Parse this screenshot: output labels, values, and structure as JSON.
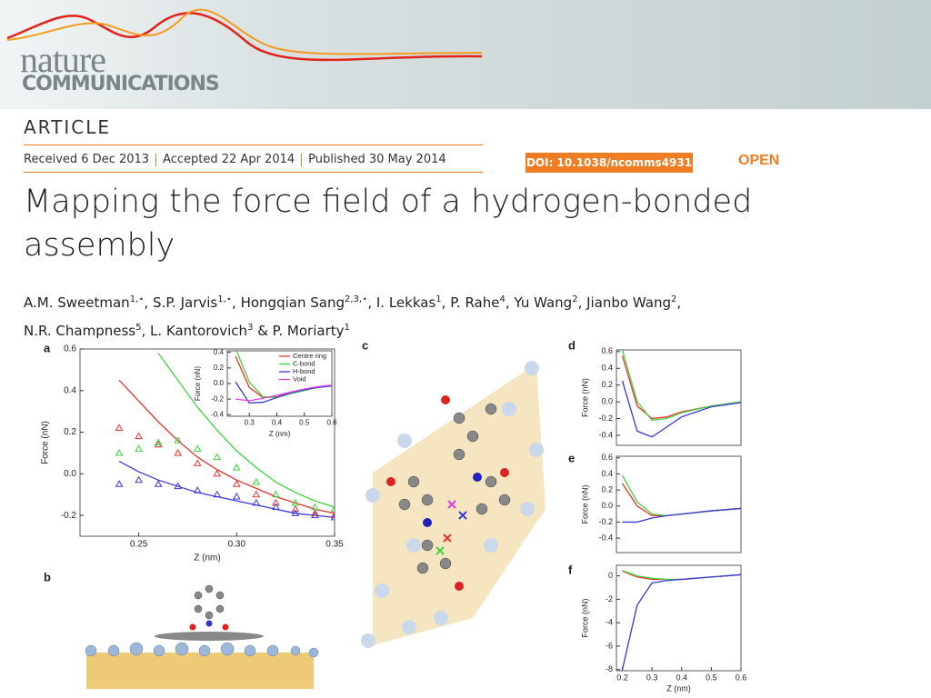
{
  "header": {
    "journal_name": "nature",
    "journal_subtitle": "COMMUNICATIONS"
  },
  "article_type": "ARTICLE",
  "dates": [
    "Received 6 Dec 2013",
    "Accepted 22 Apr 2014",
    "Published 30 May 2014"
  ],
  "doi": "DOI: 10.1038/ncomms4931",
  "access": "OPEN",
  "title_lines": [
    "Mapping the force field of a hydrogen-bonded",
    "assembly"
  ],
  "author_lines": [
    [
      {
        "name": "A.M. Sweetman",
        "affiliations": "1,⋆",
        "separator": ", "
      },
      {
        "name": "S.P. Jarvis",
        "affiliations": "1,⋆",
        "separator": ", "
      },
      {
        "name": "Hongqian Sang",
        "affiliations": "2,3,⋆",
        "separator": ", "
      },
      {
        "name": "I. Lekkas",
        "affiliations": "1",
        "separator": ", "
      },
      {
        "name": "P. Rahe",
        "affiliations": "4",
        "separator": ", "
      },
      {
        "name": "Yu Wang",
        "affiliations": "2",
        "separator": ", "
      },
      {
        "name": "Jianbo Wang",
        "affiliations": "2",
        "separator": ","
      }
    ],
    [
      {
        "name": "N.R. Champness",
        "affiliations": "5",
        "separator": ", "
      },
      {
        "name": "L. Kantorovich",
        "affiliations": "3",
        "separator": " & "
      },
      {
        "name": "P. Moriarty",
        "affiliations": "1"
      }
    ]
  ],
  "figure": {
    "panel_labels": [
      "a",
      "b",
      "c",
      "d",
      "e",
      "f"
    ],
    "panel_a": {
      "type": "line",
      "xlabel": "Z (nm)",
      "ylabel": "Force (nN)",
      "xlim": [
        0.22,
        0.35
      ],
      "ylim": [
        -0.3,
        0.6
      ],
      "xticks": [
        0.25,
        {
          "value": 0.3,
          "label": "0.30"
        },
        0.35
      ],
      "yticks": [
        0.6,
        0.4,
        0.2,
        {
          "value": 0,
          "label": "0.0"
        },
        -0.2
      ],
      "x": [
        0.24,
        0.25,
        0.26,
        0.27,
        0.28,
        0.29,
        0.3,
        0.31,
        0.32,
        0.33,
        0.34,
        0.35
      ],
      "series": [
        {
          "color": "#e8332f",
          "values": [
            0.45,
            0.35,
            0.25,
            0.16,
            0.08,
            0.02,
            -0.03,
            -0.07,
            -0.11,
            -0.14,
            -0.17,
            -0.19
          ]
        },
        {
          "color": "#3fd33f",
          "values": [
            null,
            null,
            0.58,
            0.45,
            0.32,
            0.21,
            0.11,
            0.03,
            -0.04,
            -0.09,
            -0.13,
            -0.16
          ]
        },
        {
          "color": "#3838d8",
          "values": [
            0.06,
            0.01,
            -0.03,
            -0.06,
            -0.09,
            -0.11,
            -0.13,
            -0.15,
            -0.17,
            -0.19,
            -0.2,
            -0.21
          ]
        },
        {
          "color": "#e8332f",
          "marker": "triangle",
          "values": [
            0.22,
            0.18,
            0.14,
            0.1,
            0.05,
            0.0,
            -0.05,
            -0.1,
            -0.14,
            -0.17,
            -0.19,
            -0.2
          ]
        },
        {
          "color": "#3fd33f",
          "marker": "triangle",
          "values": [
            0.1,
            0.12,
            0.15,
            0.16,
            0.12,
            0.08,
            0.03,
            -0.04,
            -0.1,
            -0.14,
            -0.16,
            -0.17
          ]
        },
        {
          "color": "#3838d8",
          "marker": "triangle",
          "values": [
            -0.05,
            -0.03,
            -0.05,
            -0.06,
            -0.08,
            -0.1,
            -0.11,
            -0.14,
            -0.16,
            -0.19,
            -0.2,
            -0.21
          ]
        }
      ]
    },
    "panel_a_inset": {
      "type": "line",
      "xlabel": "Z (nm)",
      "ylabel": "Force (nN)",
      "xlim": [
        0.22,
        0.6
      ],
      "ylim": [
        -0.42,
        0.42
      ],
      "xticks": [
        0.3,
        0.4,
        0.5,
        0.6
      ],
      "yticks": [
        0.4,
        0.2,
        {
          "value": 0,
          "label": "0.0"
        },
        -0.2,
        -0.4
      ],
      "x": [
        0.25,
        0.3,
        0.35,
        0.4,
        0.45,
        0.5,
        0.55,
        0.6
      ],
      "series": [
        {
          "name": "Centre ring",
          "color": "#e8332f",
          "values": [
            0.35,
            -0.05,
            -0.18,
            -0.17,
            -0.12,
            -0.08,
            -0.05,
            -0.03
          ]
        },
        {
          "name": "C-bond",
          "color": "#3fd33f",
          "values": [
            0.45,
            0.02,
            -0.17,
            -0.18,
            -0.13,
            -0.09,
            -0.05,
            -0.03
          ]
        },
        {
          "name": "H-bond",
          "color": "#3838d8",
          "values": [
            0.02,
            -0.25,
            -0.24,
            -0.18,
            -0.12,
            -0.08,
            -0.05,
            -0.03
          ]
        },
        {
          "name": "Void",
          "color": "#e040e0",
          "values": [
            -0.2,
            -0.22,
            -0.19,
            -0.15,
            -0.11,
            -0.07,
            -0.04,
            -0.02
          ]
        }
      ]
    },
    "panel_d": {
      "type": "line",
      "ylabel": "Force (nN)",
      "xlim": [
        0.18,
        0.6
      ],
      "ylim": [
        -0.52,
        0.62
      ],
      "yticks": [
        0.6,
        0.4,
        0.2,
        {
          "value": 0,
          "label": "0.0"
        },
        -0.2,
        -0.4
      ],
      "x": [
        0.2,
        0.25,
        0.3,
        0.35,
        0.4,
        0.5,
        0.6
      ],
      "series": [
        {
          "color": "#e8332f",
          "values": [
            0.55,
            -0.05,
            -0.2,
            -0.18,
            -0.12,
            -0.05,
            0.0
          ]
        },
        {
          "color": "#3fd33f",
          "values": [
            0.62,
            0.0,
            -0.22,
            -0.2,
            -0.13,
            -0.05,
            0.0
          ]
        },
        {
          "color": "#3838d8",
          "values": [
            0.25,
            -0.35,
            -0.42,
            -0.3,
            -0.18,
            -0.06,
            -0.01
          ]
        }
      ]
    },
    "panel_e": {
      "type": "line",
      "ylabel": "Force (nN)",
      "xlim": [
        0.18,
        0.6
      ],
      "ylim": [
        -0.58,
        0.62
      ],
      "yticks": [
        0.6,
        0.4,
        0.2,
        {
          "value": 0,
          "label": "0.0"
        },
        -0.2,
        -0.4
      ],
      "x": [
        0.2,
        0.25,
        0.3,
        0.35,
        0.4,
        0.5,
        0.6
      ],
      "series": [
        {
          "color": "#e8332f",
          "values": [
            0.28,
            0.0,
            -0.12,
            -0.12,
            -0.1,
            -0.06,
            -0.03
          ]
        },
        {
          "color": "#3fd33f",
          "values": [
            0.38,
            0.05,
            -0.1,
            -0.12,
            -0.1,
            -0.06,
            -0.03
          ]
        },
        {
          "color": "#3838d8",
          "values": [
            -0.2,
            -0.2,
            -0.15,
            -0.12,
            -0.1,
            -0.06,
            -0.03
          ]
        }
      ]
    },
    "panel_f": {
      "type": "line",
      "xlabel": "Z (nm)",
      "ylabel": "Force (nN)",
      "xlim": [
        0.18,
        0.6
      ],
      "ylim": [
        -8.1,
        0.9
      ],
      "xticks": [
        0.2,
        0.3,
        0.4,
        0.5,
        0.6
      ],
      "yticks": [
        0,
        -2,
        -4,
        -6,
        -8
      ],
      "x": [
        0.2,
        0.25,
        0.3,
        0.35,
        0.4,
        0.5,
        0.6
      ],
      "series": [
        {
          "color": "#e8332f",
          "values": [
            0.4,
            -0.1,
            -0.3,
            -0.3,
            -0.3,
            -0.1,
            0.1
          ]
        },
        {
          "color": "#3fd33f",
          "values": [
            0.45,
            0.0,
            -0.2,
            -0.3,
            -0.3,
            -0.1,
            0.1
          ]
        },
        {
          "color": "#3838d8",
          "values": [
            -8,
            -2.5,
            -0.6,
            -0.4,
            -0.3,
            -0.1,
            0.1
          ]
        }
      ]
    }
  }
}
